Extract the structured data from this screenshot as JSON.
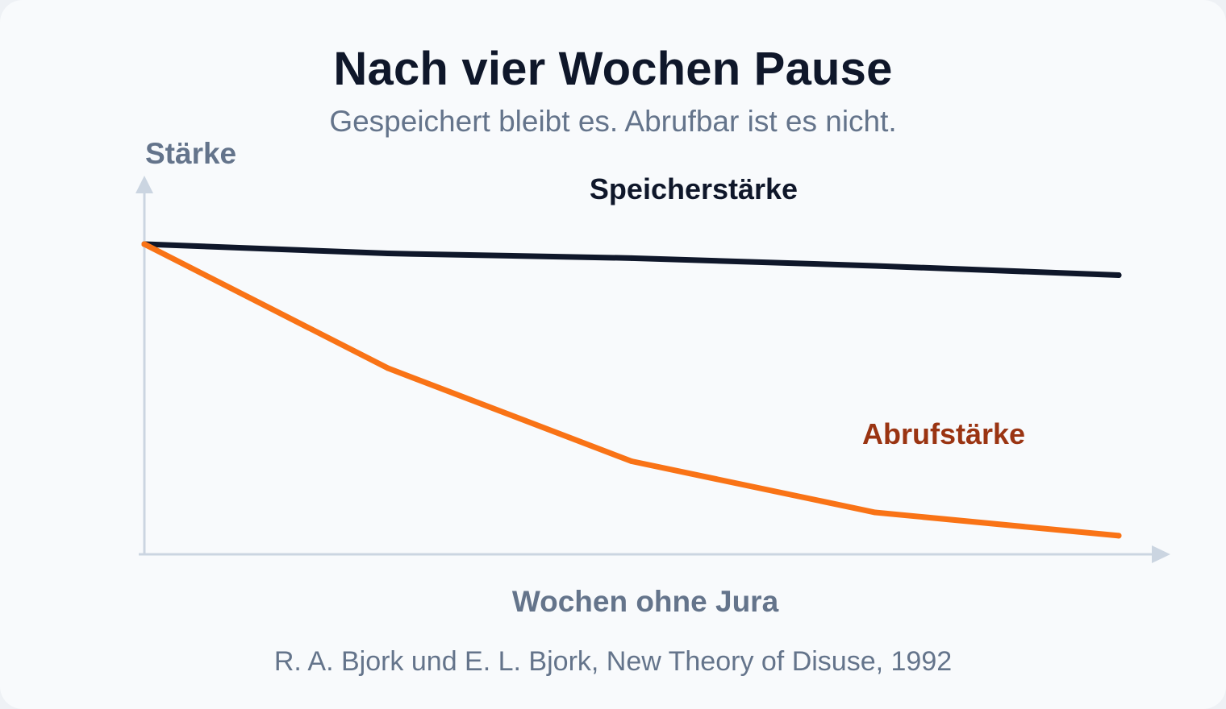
{
  "title": "Nach vier Wochen Pause",
  "subtitle": "Gespeichert bleibt es. Abrufbar ist es nicht.",
  "source": "R. A. Bjork und E. L. Bjork, New Theory of Disuse, 1992",
  "chart_data": {
    "type": "line",
    "title": "Nach vier Wochen Pause",
    "subtitle": "Gespeichert bleibt es. Abrufbar ist es nicht.",
    "xlabel": "Wochen ohne Jura",
    "ylabel": "Stärke",
    "x": [
      0,
      1,
      2,
      3,
      4
    ],
    "xlim": [
      0,
      4.2
    ],
    "ylim": [
      0,
      100
    ],
    "grid": false,
    "legend": "inline labels",
    "series": [
      {
        "name": "Speicherstärke",
        "color": "#0f172a",
        "values": [
          100,
          97,
          95.5,
          93,
          90
        ]
      },
      {
        "name": "Abrufstärke",
        "color": "#f97316",
        "label_color": "#9a3412",
        "values": [
          100,
          60,
          30,
          13.5,
          6
        ]
      }
    ]
  },
  "colors": {
    "axis": "#cbd5e1",
    "background": "#f8fafc"
  }
}
